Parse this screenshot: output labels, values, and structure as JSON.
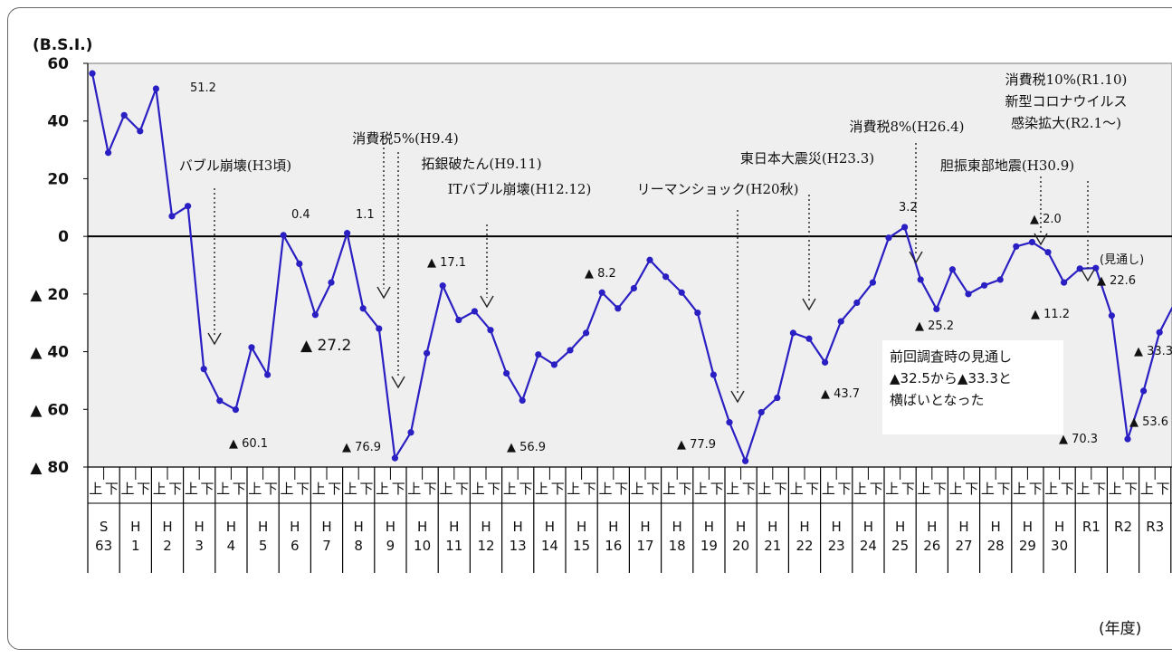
{
  "chart_data": {
    "type": "line",
    "ylabel": "(B.S.I.)",
    "xlabel": "(年度)",
    "ylim": [
      -80,
      60
    ],
    "yticks": [
      {
        "v": 60,
        "label": "60"
      },
      {
        "v": 40,
        "label": "40"
      },
      {
        "v": 20,
        "label": "20"
      },
      {
        "v": 0,
        "label": "0"
      },
      {
        "v": -20,
        "label": "▲ 20"
      },
      {
        "v": -40,
        "label": "▲ 40"
      },
      {
        "v": -60,
        "label": "▲ 60"
      },
      {
        "v": -80,
        "label": "▲ 80"
      }
    ],
    "half_labels": [
      "上",
      "下"
    ],
    "years": [
      "S\n63",
      "H\n1",
      "H\n2",
      "H\n3",
      "H\n4",
      "H\n5",
      "H\n6",
      "H\n7",
      "H\n8",
      "H\n9",
      "H\n10",
      "H\n11",
      "H\n12",
      "H\n13",
      "H\n14",
      "H\n15",
      "H\n16",
      "H\n17",
      "H\n18",
      "H\n19",
      "H\n20",
      "H\n21",
      "H\n22",
      "H\n23",
      "H\n24",
      "H\n25",
      "H\n26",
      "H\n27",
      "H\n28",
      "H\n29",
      "H\n30",
      "R1",
      "R2",
      "R3"
    ],
    "series": [
      {
        "values": [
          56.5,
          29,
          42,
          36.5,
          51.2,
          7,
          10.5,
          -46,
          -57,
          -60.1,
          -38.5,
          -48,
          0.4,
          -9.5,
          -27.2,
          -16,
          1.1,
          -25,
          -32,
          -76.9,
          -68,
          -40.5,
          -17.1,
          -29,
          -26,
          -32.5,
          -47.5,
          -56.9,
          -41,
          -44.5,
          -39.5,
          -33.5,
          -19.5,
          -25,
          -18,
          -8.2,
          -14,
          -19.5,
          -26.5,
          -48,
          -64.5,
          -77.9,
          -61,
          -56,
          -33.5,
          -35.5,
          -43.7,
          -29.5,
          -23,
          -16,
          -0.5,
          3.2,
          -15,
          -25.2,
          -11.5,
          -20,
          -17,
          -15,
          -3.5,
          -2.0,
          -5.5,
          -16,
          -11.2,
          -11,
          -27.5,
          -70.3,
          -53.6,
          -33.3,
          -22.6
        ],
        "forecast_start_index": 66
      }
    ],
    "value_labels": [
      {
        "text": "51.2"
      },
      {
        "text": "▲ 60.1"
      },
      {
        "text": "0.4"
      },
      {
        "text": "▲ 27.2"
      },
      {
        "text": "1.1"
      },
      {
        "text": "▲ 76.9"
      },
      {
        "text": "▲ 17.1"
      },
      {
        "text": "▲ 56.9"
      },
      {
        "text": "▲ 8.2"
      },
      {
        "text": "▲ 77.9"
      },
      {
        "text": "▲ 43.7"
      },
      {
        "text": "3.2"
      },
      {
        "text": "▲ 25.2"
      },
      {
        "text": "▲ 2.0"
      },
      {
        "text": "▲ 11.2"
      },
      {
        "text": "▲ 70.3"
      },
      {
        "text": "(見通し)"
      },
      {
        "text": "▲ 22.6"
      },
      {
        "text": "▲ 33.3"
      },
      {
        "text": "▲ 53.6"
      }
    ],
    "events": [
      {
        "lines": [
          "バブル崩壊(H3頃)"
        ]
      },
      {
        "lines": [
          "消費税5%(H9.4)"
        ]
      },
      {
        "lines": [
          "拓銀破たん(H9.11)"
        ]
      },
      {
        "lines": [
          "ITバブル崩壊(H12.12)"
        ]
      },
      {
        "lines": [
          "リーマンショック(H20秋)"
        ]
      },
      {
        "lines": [
          "東日本大震災(H23.3)"
        ]
      },
      {
        "lines": [
          "消費税8%(H26.4)"
        ]
      },
      {
        "lines": [
          "胆振東部地震(H30.9)"
        ]
      },
      {
        "lines": [
          "消費税10%(R1.10)",
          "新型コロナウイルス",
          "感染拡大(R2.1～)"
        ]
      }
    ],
    "note": [
      "前回調査時の見通し",
      "▲32.5から▲33.3と",
      "横ばいとなった"
    ],
    "colors": {
      "line": "#2a1fc2",
      "marker": "#2a1fc2",
      "plot_bg": "#efefef",
      "zero_line": "#000000"
    }
  }
}
